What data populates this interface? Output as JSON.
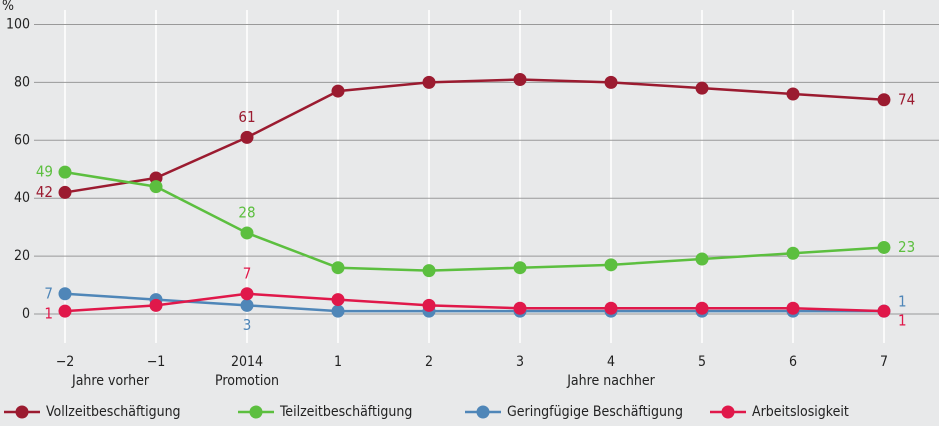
{
  "chart_data": {
    "type": "line",
    "y_label": "%",
    "categories": [
      "−2",
      "−1",
      "2014",
      "1",
      "2",
      "3",
      "4",
      "5",
      "6",
      "7"
    ],
    "x_sublabels": [
      "Jahre vorher",
      "Promotion",
      "Jahre nachher"
    ],
    "series": [
      {
        "name": "Vollzeitbeschäftigung",
        "color": "#9b1b30",
        "values": [
          42,
          47,
          61,
          77,
          80,
          81,
          80,
          78,
          76,
          74
        ],
        "labeled": [
          0,
          2,
          9
        ]
      },
      {
        "name": "Teilzeitbeschäftigung",
        "color": "#5cbf3f",
        "values": [
          49,
          44,
          28,
          16,
          15,
          16,
          17,
          19,
          21,
          23
        ],
        "labeled": [
          0,
          2,
          9
        ]
      },
      {
        "name": "Geringfügige Beschäftigung",
        "color": "#4f86b8",
        "values": [
          7,
          5,
          3,
          1,
          1,
          1,
          1,
          1,
          1,
          1
        ],
        "labeled": [
          0,
          2,
          9
        ]
      },
      {
        "name": "Arbeitslosigkeit",
        "color": "#e0184a",
        "values": [
          1,
          3,
          7,
          5,
          3,
          2,
          2,
          2,
          2,
          1
        ],
        "labeled": [
          0,
          2,
          9
        ]
      }
    ],
    "ylim": [
      -10,
      105
    ],
    "yticks": [
      0,
      20,
      40,
      60,
      80,
      100
    ],
    "grid": true
  }
}
